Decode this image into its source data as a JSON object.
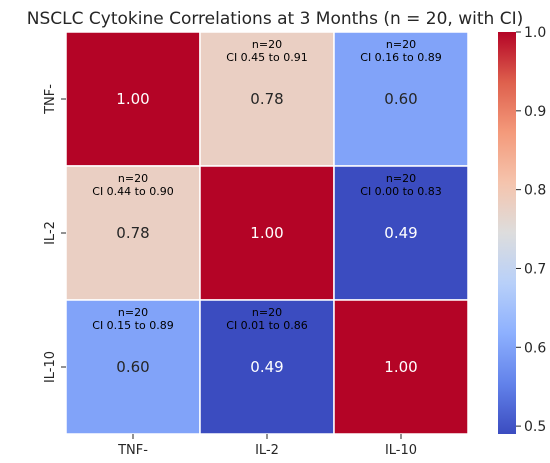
{
  "chart_data": {
    "type": "heatmap",
    "title": "NSCLC Cytokine Correlations at 3 Months (n = 20, with CI)",
    "xlabel": "",
    "ylabel": "",
    "x_categories": [
      "TNF-",
      "IL-2",
      "IL-10"
    ],
    "y_categories": [
      "TNF-",
      "IL-2",
      "IL-10"
    ],
    "values": [
      [
        1.0,
        0.78,
        0.6
      ],
      [
        0.78,
        1.0,
        0.49
      ],
      [
        0.6,
        0.49,
        1.0
      ]
    ],
    "value_labels": [
      [
        "1.00",
        "0.78",
        "0.60"
      ],
      [
        "0.78",
        "1.00",
        "0.49"
      ],
      [
        "0.60",
        "0.49",
        "1.00"
      ]
    ],
    "annotations": [
      [
        null,
        {
          "n": "n=20",
          "ci": "CI 0.45 to 0.91"
        },
        {
          "n": "n=20",
          "ci": "CI 0.16 to 0.89"
        }
      ],
      [
        {
          "n": "n=20",
          "ci": "CI 0.44 to 0.90"
        },
        null,
        {
          "n": "n=20",
          "ci": "CI 0.00 to 0.83"
        }
      ],
      [
        {
          "n": "n=20",
          "ci": "CI 0.15 to 0.89"
        },
        {
          "n": "n=20",
          "ci": "CI 0.01 to 0.86"
        },
        null
      ]
    ],
    "colorbar": {
      "colormap": "coolwarm",
      "range": [
        0.49,
        1.0
      ],
      "ticks": [
        0.5,
        0.6,
        0.7,
        0.8,
        0.9,
        1.0
      ],
      "tick_labels": [
        "0.5",
        "0.6",
        "0.7",
        "0.8",
        "0.9",
        "1.0"
      ]
    },
    "colors": {
      "cold": "#3b4cc0",
      "mid": "#dddddd",
      "hot": "#b40426",
      "cell_border": "#ffffff"
    }
  }
}
